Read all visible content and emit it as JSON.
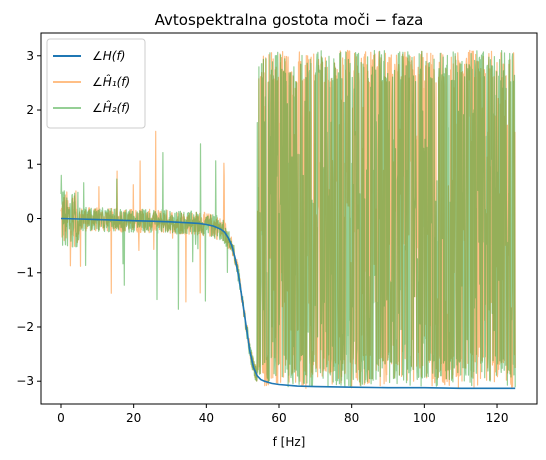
{
  "chart_data": {
    "type": "line",
    "title": "Avtospektralna gostota moči − faza",
    "xlabel": "f [Hz]",
    "ylabel": "",
    "xlim": [
      -5.5,
      131
    ],
    "ylim": [
      -3.42,
      3.42
    ],
    "xticks": [
      0,
      20,
      40,
      60,
      80,
      100,
      120
    ],
    "yticks": [
      -3,
      -2,
      -1,
      0,
      1,
      2,
      3
    ],
    "grid": false,
    "legend_position": "top-left",
    "series": [
      {
        "name": "∠H(f)",
        "color": "#1f77b4",
        "opacity": 1,
        "description_kind": "smooth",
        "x": [
          0,
          5,
          10,
          15,
          20,
          25,
          30,
          35,
          38,
          40,
          42,
          44,
          45,
          46,
          47,
          48,
          49,
          50,
          51,
          52,
          53,
          54,
          55,
          56,
          58,
          60,
          65,
          70,
          80,
          90,
          100,
          110,
          120,
          125
        ],
        "y": [
          0.0,
          -0.01,
          -0.02,
          -0.03,
          -0.04,
          -0.05,
          -0.06,
          -0.08,
          -0.09,
          -0.11,
          -0.14,
          -0.2,
          -0.25,
          -0.35,
          -0.5,
          -0.75,
          -1.1,
          -1.55,
          -2.0,
          -2.45,
          -2.75,
          -2.9,
          -2.97,
          -3.0,
          -3.04,
          -3.06,
          -3.09,
          -3.1,
          -3.11,
          -3.12,
          -3.12,
          -3.13,
          -3.13,
          -3.13
        ]
      },
      {
        "name": "∠Ĥ₁(f)",
        "color": "#ff7f0e",
        "opacity": 0.5,
        "description_kind": "noisy"
      },
      {
        "name": "∠Ĥ₂(f)",
        "color": "#2ca02c",
        "opacity": 0.5,
        "description_kind": "noisy"
      }
    ]
  }
}
